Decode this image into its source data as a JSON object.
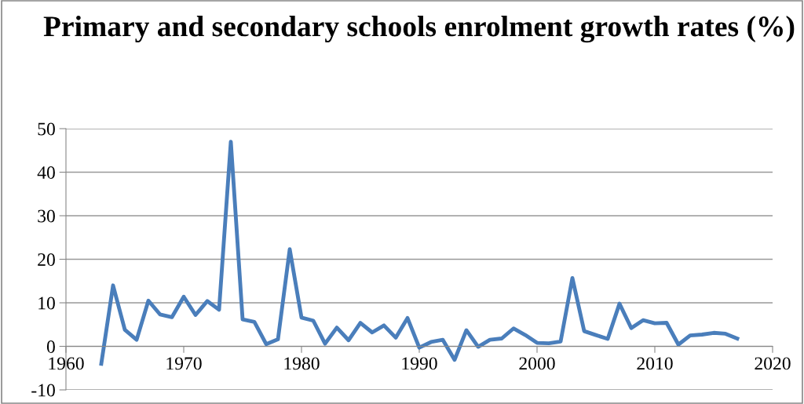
{
  "chart_data": {
    "type": "line",
    "title": "Primary and secondary schools enrolment growth rates (%)",
    "x": [
      1963,
      1964,
      1965,
      1966,
      1967,
      1968,
      1969,
      1970,
      1971,
      1972,
      1973,
      1974,
      1975,
      1976,
      1977,
      1978,
      1979,
      1980,
      1981,
      1982,
      1983,
      1984,
      1985,
      1986,
      1987,
      1988,
      1989,
      1990,
      1991,
      1992,
      1993,
      1994,
      1995,
      1996,
      1997,
      1998,
      1999,
      2000,
      2001,
      2002,
      2003,
      2004,
      2005,
      2006,
      2007,
      2008,
      2009,
      2010,
      2011,
      2012,
      2013,
      2014,
      2015,
      2016,
      2017
    ],
    "series": [
      {
        "color": "#4a7ebb",
        "values": [
          -4,
          14,
          3.8,
          1.5,
          10.5,
          7.3,
          6.7,
          11.4,
          7.2,
          10.4,
          8.4,
          47,
          6.2,
          5.6,
          0.5,
          1.6,
          22.3,
          6.6,
          5.9,
          0.6,
          4.3,
          1.4,
          5.4,
          3.2,
          4.8,
          2,
          6.5,
          -0.3,
          1,
          1.5,
          -3.1,
          3.7,
          -0.1,
          1.5,
          1.8,
          4.1,
          2.6,
          0.8,
          0.7,
          1.1,
          15.7,
          3.5,
          2.6,
          1.7,
          9.8,
          4.2,
          6,
          5.3,
          5.4,
          0.4,
          2.5,
          2.7,
          3.1,
          2.9,
          1.8
        ]
      }
    ],
    "xlim": [
      1960,
      2020
    ],
    "xticks": [
      1960,
      1970,
      1980,
      1990,
      2000,
      2010,
      2020
    ],
    "ylim": [
      -10,
      50
    ],
    "yticks": [
      -10,
      0,
      10,
      20,
      30,
      40,
      50
    ],
    "grid": "y",
    "legend": false,
    "marker": "none",
    "line_style": "solid"
  }
}
